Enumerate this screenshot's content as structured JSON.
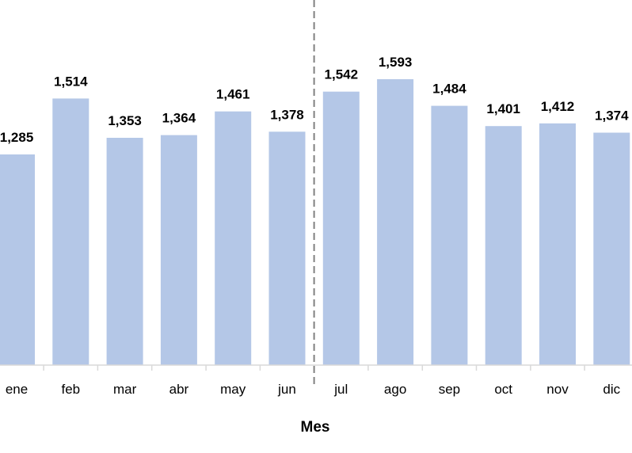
{
  "chart_data": {
    "type": "bar",
    "categories": [
      "ene",
      "feb",
      "mar",
      "abr",
      "may",
      "jun",
      "jul",
      "ago",
      "sep",
      "oct",
      "nov",
      "dic"
    ],
    "values": [
      1285,
      1514,
      1353,
      1364,
      1461,
      1378,
      1542,
      1593,
      1484,
      1401,
      1412,
      1374
    ],
    "value_labels": [
      "1,285",
      "1,514",
      "1,353",
      "1,364",
      "1,461",
      "1,378",
      "1,542",
      "1,593",
      "1,484",
      "1,401",
      "1,412",
      "1,374"
    ],
    "xlabel": "Mes",
    "ylim": [
      0,
      1700
    ],
    "grid": false,
    "divider_after_category": "jun",
    "colors": {
      "bar": "#b4c7e7",
      "axis": "#d9d9d9",
      "divider": "#808080"
    }
  }
}
